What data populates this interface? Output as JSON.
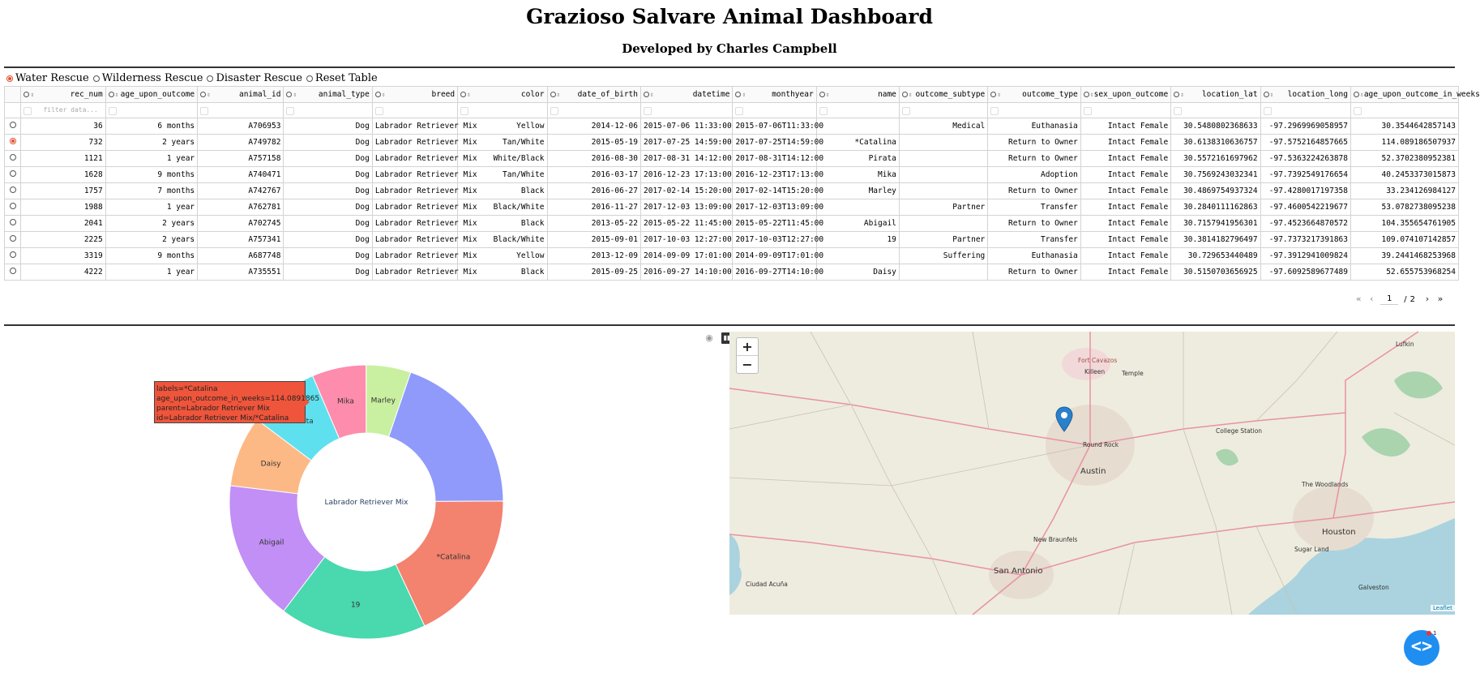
{
  "header": {
    "title": "Grazioso Salvare Animal Dashboard",
    "subtitle": "Developed by Charles Campbell"
  },
  "filters": {
    "options": [
      "Water Rescue",
      "Wilderness Rescue",
      "Disaster Rescue",
      "Reset Table"
    ],
    "selected": "Water Rescue"
  },
  "table": {
    "columns": [
      "rec_num",
      "age_upon_outcome",
      "animal_id",
      "animal_type",
      "breed",
      "color",
      "date_of_birth",
      "datetime",
      "monthyear",
      "name",
      "outcome_subtype",
      "outcome_type",
      "sex_upon_outcome",
      "location_lat",
      "location_long",
      "age_upon_outcome_in_weeks"
    ],
    "filter_placeholder": "filter data...",
    "selected_row": 1,
    "rows": [
      [
        "36",
        "6 months",
        "A706953",
        "Dog",
        "Labrador Retriever Mix",
        "Yellow",
        "2014-12-06",
        "2015-07-06 11:33:00",
        "2015-07-06T11:33:00",
        "",
        "Medical",
        "Euthanasia",
        "Intact Female",
        "30.5480802368633",
        "-97.2969969058957",
        "30.3544642857143"
      ],
      [
        "732",
        "2 years",
        "A749782",
        "Dog",
        "Labrador Retriever Mix",
        "Tan/White",
        "2015-05-19",
        "2017-07-25 14:59:00",
        "2017-07-25T14:59:00",
        "*Catalina",
        "",
        "Return to Owner",
        "Intact Female",
        "30.6138310636757",
        "-97.5752164857665",
        "114.089186507937"
      ],
      [
        "1121",
        "1 year",
        "A757158",
        "Dog",
        "Labrador Retriever Mix",
        "White/Black",
        "2016-08-30",
        "2017-08-31 14:12:00",
        "2017-08-31T14:12:00",
        "Pirata",
        "",
        "Return to Owner",
        "Intact Female",
        "30.5572161697962",
        "-97.5363224263878",
        "52.3702380952381"
      ],
      [
        "1628",
        "9 months",
        "A740471",
        "Dog",
        "Labrador Retriever Mix",
        "Tan/White",
        "2016-03-17",
        "2016-12-23 17:13:00",
        "2016-12-23T17:13:00",
        "Mika",
        "",
        "Adoption",
        "Intact Female",
        "30.7569243032341",
        "-97.7392549176654",
        "40.2453373015873"
      ],
      [
        "1757",
        "7 months",
        "A742767",
        "Dog",
        "Labrador Retriever Mix",
        "Black",
        "2016-06-27",
        "2017-02-14 15:20:00",
        "2017-02-14T15:20:00",
        "Marley",
        "",
        "Return to Owner",
        "Intact Female",
        "30.4869754937324",
        "-97.4280017197358",
        "33.234126984127"
      ],
      [
        "1988",
        "1 year",
        "A762781",
        "Dog",
        "Labrador Retriever Mix",
        "Black/White",
        "2016-11-27",
        "2017-12-03 13:09:00",
        "2017-12-03T13:09:00",
        "",
        "Partner",
        "Transfer",
        "Intact Female",
        "30.2840111162863",
        "-97.4600542219677",
        "53.0782738095238"
      ],
      [
        "2041",
        "2 years",
        "A702745",
        "Dog",
        "Labrador Retriever Mix",
        "Black",
        "2013-05-22",
        "2015-05-22 11:45:00",
        "2015-05-22T11:45:00",
        "Abigail",
        "",
        "Return to Owner",
        "Intact Female",
        "30.7157941956301",
        "-97.4523664870572",
        "104.355654761905"
      ],
      [
        "2225",
        "2 years",
        "A757341",
        "Dog",
        "Labrador Retriever Mix",
        "Black/White",
        "2015-09-01",
        "2017-10-03 12:27:00",
        "2017-10-03T12:27:00",
        "19",
        "Partner",
        "Transfer",
        "Intact Female",
        "30.3814182796497",
        "-97.7373217391863",
        "109.074107142857"
      ],
      [
        "3319",
        "9 months",
        "A687748",
        "Dog",
        "Labrador Retriever Mix",
        "Yellow",
        "2013-12-09",
        "2014-09-09 17:01:00",
        "2014-09-09T17:01:00",
        "",
        "Suffering",
        "Euthanasia",
        "Intact Female",
        "30.729653440489",
        "-97.3912941009824",
        "39.2441468253968"
      ],
      [
        "4222",
        "1 year",
        "A735551",
        "Dog",
        "Labrador Retriever Mix",
        "Black",
        "2015-09-25",
        "2016-09-27 14:10:00",
        "2016-09-27T14:10:00",
        "Daisy",
        "",
        "Return to Owner",
        "Intact Female",
        "30.5150703656925",
        "-97.6092589677489",
        "52.655753968254"
      ]
    ]
  },
  "pagination": {
    "current": "1",
    "separator": "/",
    "total": "2"
  },
  "chart_data": {
    "type": "pie",
    "subtype": "sunburst",
    "center_label": "Labrador Retriever Mix",
    "labels": [
      "(blank)",
      "*Catalina",
      "19",
      "Abigail",
      "Daisy",
      "Pirata",
      "Mika",
      "Marley"
    ],
    "show_label": [
      false,
      true,
      true,
      true,
      true,
      true,
      true,
      true
    ],
    "values": [
      123.6786,
      114.0892,
      109.0741,
      104.3557,
      52.6558,
      52.3702,
      40.2453,
      33.2341
    ],
    "colors": [
      "#8f9afb",
      "#f3826f",
      "#4ad8ae",
      "#c18ff5",
      "#fdb985",
      "#5ee0ef",
      "#fe8cac",
      "#c9f0a0"
    ],
    "tooltip": {
      "lines": [
        "labels=*Catalina",
        "age_upon_outcome_in_weeks=114.0891865",
        "parent=Labrador Retriever Mix",
        "id=Labrador Retriever Mix/*Catalina"
      ]
    }
  },
  "modebar": {
    "camera": "camera-icon",
    "plotly": "plotly-logo-icon"
  },
  "map": {
    "zoom_in": "+",
    "zoom_out": "−",
    "attribution": "Leaflet",
    "labels": [
      "Fort Cavazos",
      "Killeen",
      "Temple",
      "Lufkin",
      "Round Rock",
      "Austin",
      "College Station",
      "The Woodlands",
      "New Braunfels",
      "Houston",
      "Sugar Land",
      "San Antonio",
      "Galveston",
      "Ciudad Acuña"
    ]
  },
  "fab": {
    "label": "<>",
    "badge": "1"
  }
}
